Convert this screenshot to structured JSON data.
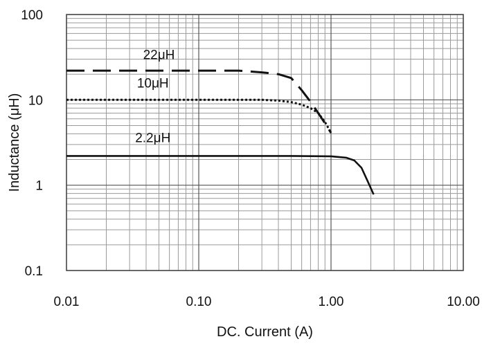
{
  "chart_data": {
    "type": "line",
    "title": "",
    "xlabel": "DC. Current (A)",
    "ylabel": "Inductance (μH)",
    "xscale": "log",
    "yscale": "log",
    "xlim": [
      0.01,
      10
    ],
    "ylim": [
      0.1,
      100
    ],
    "x_ticks": [
      0.01,
      0.1,
      1,
      10
    ],
    "x_tick_labels": [
      "0.01",
      "0.10",
      "1.00",
      "10.00"
    ],
    "y_ticks": [
      0.1,
      1,
      10,
      100
    ],
    "y_tick_labels": [
      "0.1",
      "1",
      "10",
      "100"
    ],
    "grid": true,
    "legend": "none",
    "series": [
      {
        "name": "22μH",
        "style": "dashed",
        "color": "#111111",
        "points": [
          [
            0.01,
            22
          ],
          [
            0.1,
            22
          ],
          [
            0.2,
            22
          ],
          [
            0.3,
            21
          ],
          [
            0.4,
            20
          ],
          [
            0.5,
            18
          ],
          [
            0.6,
            13
          ],
          [
            0.7,
            9.5
          ],
          [
            0.8,
            7
          ],
          [
            0.9,
            5.3
          ],
          [
            1.0,
            4.1
          ]
        ]
      },
      {
        "name": "10μH",
        "style": "dotted",
        "color": "#111111",
        "points": [
          [
            0.01,
            10
          ],
          [
            0.1,
            10
          ],
          [
            0.3,
            10
          ],
          [
            0.4,
            9.8
          ],
          [
            0.5,
            9.4
          ],
          [
            0.6,
            8.8
          ],
          [
            0.7,
            8.0
          ],
          [
            0.8,
            7.0
          ],
          [
            0.9,
            5.5
          ],
          [
            1.0,
            4.1
          ]
        ]
      },
      {
        "name": "2.2μH",
        "style": "solid",
        "color": "#111111",
        "points": [
          [
            0.01,
            2.2
          ],
          [
            0.1,
            2.2
          ],
          [
            0.5,
            2.2
          ],
          [
            1.0,
            2.18
          ],
          [
            1.3,
            2.1
          ],
          [
            1.5,
            1.95
          ],
          [
            1.7,
            1.6
          ],
          [
            1.9,
            1.1
          ],
          [
            2.1,
            0.78
          ]
        ]
      }
    ]
  }
}
